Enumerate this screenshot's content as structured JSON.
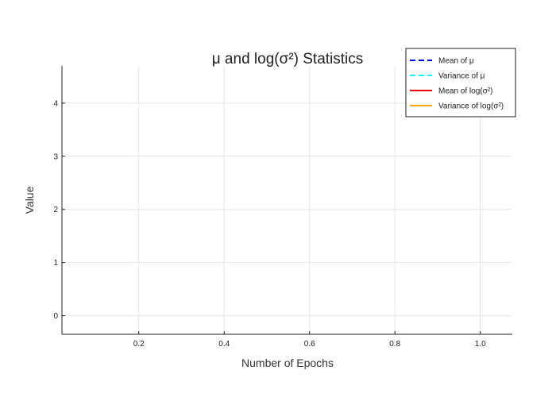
{
  "chart_data": {
    "type": "line",
    "title": "μ and log(σ²) Statistics",
    "xlabel": "Number of Epochs",
    "ylabel": "Value",
    "xlim": [
      0.02,
      1.075
    ],
    "ylim": [
      -0.35,
      4.7
    ],
    "xticks": [
      0.2,
      0.4,
      0.6,
      0.8,
      1.0
    ],
    "xtick_labels": [
      "0.2",
      "0.4",
      "0.6",
      "0.8",
      "1.0"
    ],
    "yticks": [
      0,
      1,
      2,
      3,
      4
    ],
    "ytick_labels": [
      "0",
      "1",
      "2",
      "3",
      "4"
    ],
    "grid": true,
    "legend_position": "top-right",
    "series": [
      {
        "name": "Mean of μ",
        "color": "#0000ff",
        "dash": "dashed",
        "x": [],
        "y": []
      },
      {
        "name": "Variance of μ",
        "color": "#00ffff",
        "dash": "dashed",
        "x": [],
        "y": []
      },
      {
        "name": "Mean of log(σ²)",
        "color": "#ff0000",
        "dash": "solid",
        "x": [],
        "y": []
      },
      {
        "name": "Variance of log(σ²)",
        "color": "#ffa500",
        "dash": "solid",
        "x": [],
        "y": []
      }
    ]
  }
}
